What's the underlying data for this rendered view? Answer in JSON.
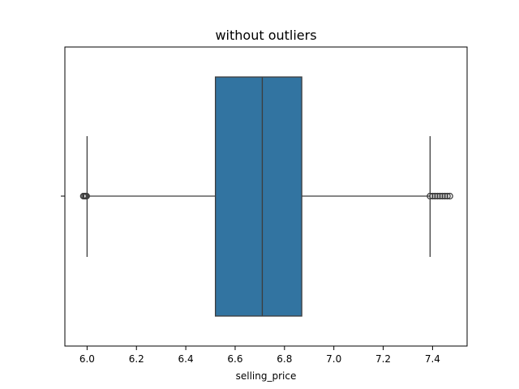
{
  "chart_data": {
    "type": "box",
    "title": "without outliers",
    "xlabel": "selling_price",
    "ylabel": "",
    "orientation": "horizontal",
    "xlim": [
      5.91,
      7.54
    ],
    "x_ticks": [
      "6.0",
      "6.2",
      "6.4",
      "6.6",
      "6.8",
      "7.0",
      "7.2",
      "7.4"
    ],
    "box": {
      "whisker_low": 6.0,
      "q1": 6.52,
      "median": 6.71,
      "q3": 6.87,
      "whisker_high": 7.39
    },
    "fliers_low": [
      5.985,
      5.99,
      5.995,
      5.998
    ],
    "fliers_high": [
      7.39,
      7.4,
      7.41,
      7.42,
      7.43,
      7.44,
      7.45,
      7.46,
      7.47
    ],
    "colors": {
      "box_fill": "#3274a1",
      "line": "#3d3d3d"
    },
    "grid": false,
    "legend": "none"
  }
}
